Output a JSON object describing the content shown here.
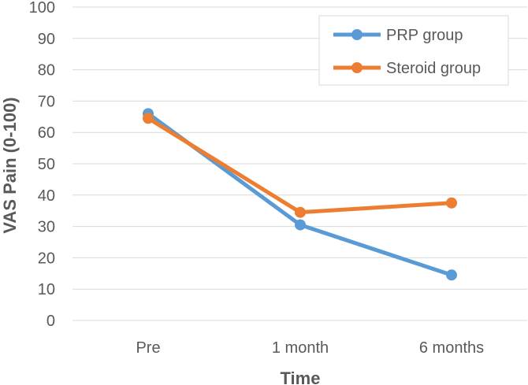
{
  "chart_data": {
    "type": "line",
    "title": "",
    "xlabel": "Time",
    "ylabel": "VAS Pain (0-100)",
    "categories": [
      "Pre",
      "1 month",
      "6 months"
    ],
    "ylim": [
      0,
      100
    ],
    "yticks": [
      0,
      10,
      20,
      30,
      40,
      50,
      60,
      70,
      80,
      90,
      100
    ],
    "grid": true,
    "legend_position": "top-right",
    "series": [
      {
        "name": "PRP group",
        "color": "#5b9bd5",
        "values": [
          66,
          30.5,
          14.5
        ]
      },
      {
        "name": "Steroid group",
        "color": "#ed7d31",
        "values": [
          64.5,
          34.5,
          37.5
        ]
      }
    ]
  }
}
